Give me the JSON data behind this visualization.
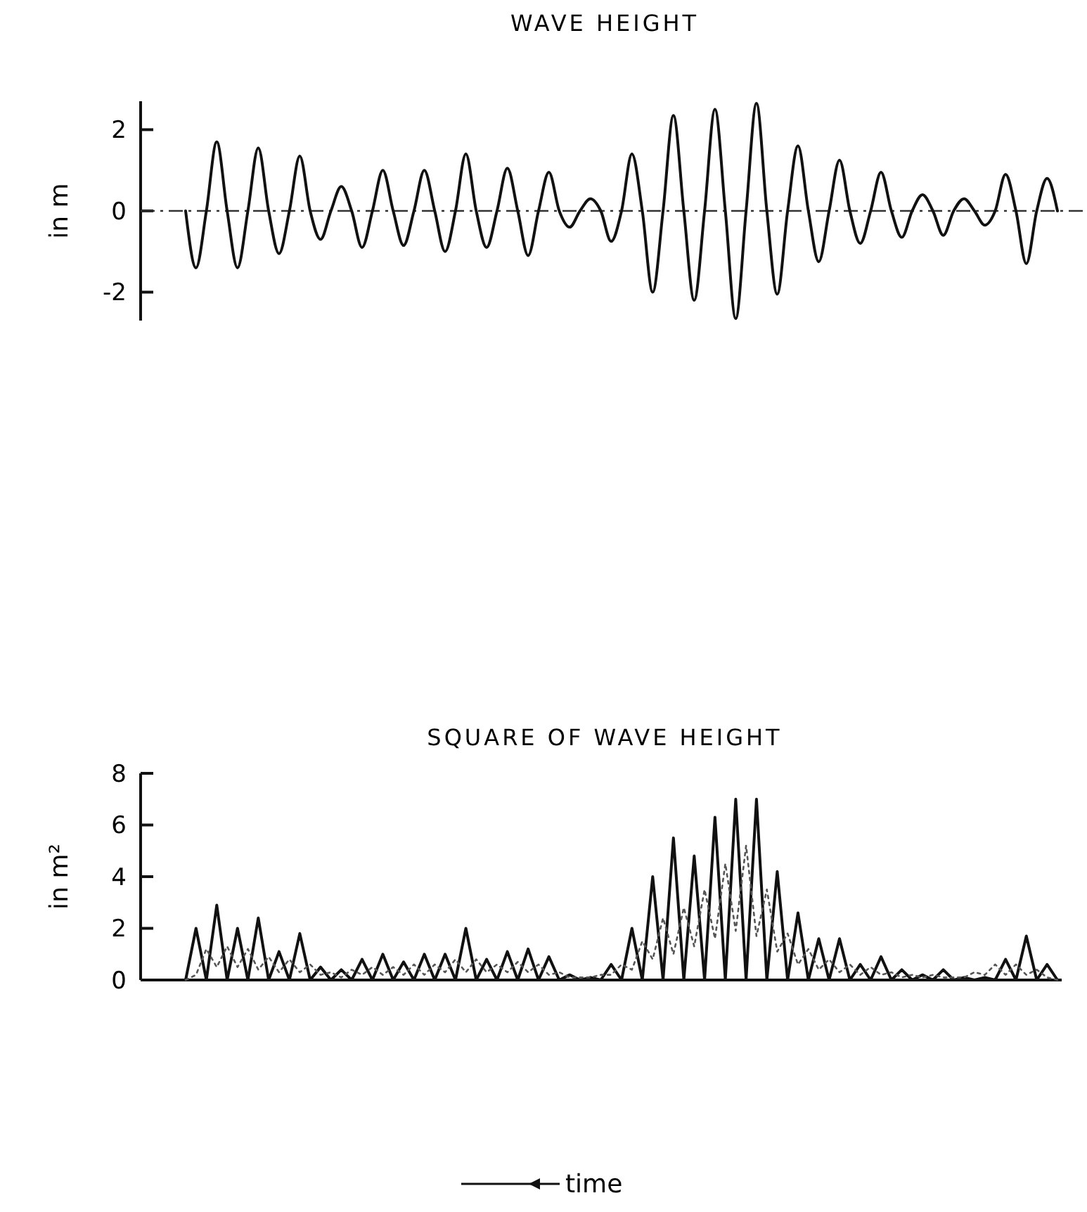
{
  "chart_data": [
    {
      "type": "line",
      "title": "WAVE HEIGHT",
      "ylabel": "in m",
      "categories": [
        null,
        null,
        null,
        null,
        null,
        null,
        null,
        null,
        null,
        null,
        null,
        null,
        null,
        null,
        null,
        null,
        null,
        null,
        null,
        null,
        null,
        null,
        null,
        null,
        null,
        null,
        null,
        null,
        null,
        null,
        null,
        null,
        null,
        null,
        null,
        null,
        null,
        null,
        null,
        null,
        null,
        null,
        null,
        null,
        null,
        null,
        null,
        null,
        null,
        null,
        null,
        null,
        null,
        null,
        null,
        null,
        null,
        null,
        null,
        null,
        null,
        null,
        null,
        null,
        null,
        null,
        null,
        null,
        null,
        null,
        null,
        null,
        null,
        null,
        null,
        null,
        null,
        null,
        null,
        null,
        null,
        null,
        null,
        null,
        null
      ],
      "series": [
        {
          "color": "#111111",
          "values": [
            0,
            -1.4,
            0,
            1.7,
            0,
            -1.4,
            0,
            1.55,
            0,
            -1.05,
            0,
            1.35,
            0,
            -0.7,
            0,
            0.6,
            0,
            -0.9,
            0,
            1.0,
            0,
            -0.85,
            0,
            1.0,
            0,
            -1.0,
            0,
            1.4,
            0,
            -0.9,
            0,
            1.05,
            0,
            -1.1,
            0,
            0.95,
            0,
            -0.4,
            0,
            0.3,
            0,
            -0.75,
            0,
            1.4,
            0,
            -2.0,
            0,
            2.35,
            0,
            -2.2,
            0,
            2.5,
            0,
            -2.65,
            0,
            2.65,
            0,
            -2.05,
            0,
            1.6,
            0,
            -1.25,
            0,
            1.25,
            0,
            -0.8,
            0,
            0.95,
            0,
            -0.65,
            0,
            0.4,
            0,
            -0.6,
            0,
            0.3,
            0,
            -0.35,
            0,
            0.9,
            0,
            -1.3,
            0,
            0.8,
            0
          ]
        }
      ],
      "ylim": [
        -2.7,
        2.7
      ],
      "yticks": [
        -2,
        0,
        2
      ],
      "tick_labels": "y",
      "ref_lines": [
        {
          "axis": "y",
          "value": 0,
          "line_style": "dashed",
          "color": "#333333"
        }
      ]
    },
    {
      "type": "line",
      "title": "SQUARE OF WAVE HEIGHT",
      "ylabel": "in m²",
      "categories": [
        null,
        null,
        null,
        null,
        null,
        null,
        null,
        null,
        null,
        null,
        null,
        null,
        null,
        null,
        null,
        null,
        null,
        null,
        null,
        null,
        null,
        null,
        null,
        null,
        null,
        null,
        null,
        null,
        null,
        null,
        null,
        null,
        null,
        null,
        null,
        null,
        null,
        null,
        null,
        null,
        null,
        null,
        null,
        null,
        null,
        null,
        null,
        null,
        null,
        null,
        null,
        null,
        null,
        null,
        null,
        null,
        null,
        null,
        null,
        null,
        null,
        null,
        null,
        null,
        null,
        null,
        null,
        null,
        null,
        null,
        null,
        null,
        null,
        null,
        null,
        null,
        null,
        null,
        null,
        null,
        null,
        null,
        null,
        null,
        null
      ],
      "series": [
        {
          "color": "#111111",
          "line_style": "solid",
          "values": [
            0,
            2.0,
            0,
            2.9,
            0,
            2.0,
            0,
            2.4,
            0,
            1.1,
            0,
            1.8,
            0,
            0.5,
            0,
            0.4,
            0,
            0.8,
            0,
            1.0,
            0,
            0.7,
            0,
            1.0,
            0,
            1.0,
            0,
            2.0,
            0,
            0.8,
            0,
            1.1,
            0,
            1.2,
            0,
            0.9,
            0,
            0.2,
            0,
            0.1,
            0,
            0.6,
            0,
            2.0,
            0,
            4.0,
            0,
            5.5,
            0,
            4.8,
            0,
            6.3,
            0,
            7.0,
            0,
            7.0,
            0,
            4.2,
            0,
            2.6,
            0,
            1.6,
            0,
            1.6,
            0,
            0.6,
            0,
            0.9,
            0,
            0.4,
            0,
            0.2,
            0,
            0.4,
            0,
            0.1,
            0,
            0.1,
            0,
            0.8,
            0,
            1.7,
            0,
            0.6,
            0
          ]
        },
        {
          "color": "#555555",
          "line_style": "dotted",
          "values": [
            0,
            0.2,
            1.2,
            0.5,
            1.3,
            0.5,
            1.2,
            0.4,
            0.9,
            0.3,
            0.8,
            0.3,
            0.6,
            0.2,
            0.3,
            0.1,
            0.4,
            0.2,
            0.5,
            0.2,
            0.5,
            0.2,
            0.6,
            0.2,
            0.6,
            0.3,
            0.8,
            0.3,
            0.8,
            0.3,
            0.6,
            0.3,
            0.7,
            0.3,
            0.6,
            0.2,
            0.3,
            0.1,
            0.1,
            0.1,
            0.2,
            0.2,
            0.6,
            0.4,
            1.5,
            0.8,
            2.4,
            1.0,
            2.8,
            1.3,
            3.5,
            1.6,
            4.5,
            1.9,
            5.2,
            1.7,
            3.5,
            1.1,
            1.8,
            0.6,
            1.2,
            0.4,
            0.8,
            0.3,
            0.6,
            0.2,
            0.5,
            0.2,
            0.3,
            0.1,
            0.2,
            0.1,
            0.2,
            0.1,
            0.1,
            0.1,
            0.3,
            0.2,
            0.6,
            0.2,
            0.6,
            0.2,
            0.4,
            0.1,
            0
          ]
        }
      ],
      "ylim": [
        0,
        8
      ],
      "yticks": [
        0,
        2,
        4,
        6,
        8
      ],
      "tick_labels": "y",
      "annotations": [
        "time"
      ]
    }
  ]
}
